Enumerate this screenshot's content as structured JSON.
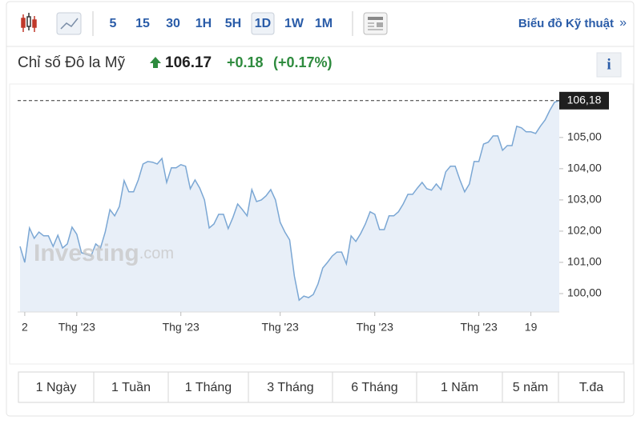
{
  "toolbar": {
    "intervals": [
      "5",
      "15",
      "30",
      "1H",
      "5H",
      "1D",
      "1W",
      "1M"
    ],
    "active": "1D",
    "technical_link": "Biểu đồ Kỹ thuật",
    "link_arrow": "»"
  },
  "quote": {
    "name": "Chỉ số Đô la Mỹ",
    "price": 106.17,
    "change": "+0.18",
    "change_pct": "(+0.17%)",
    "info": "i"
  },
  "ranges": [
    "1 Ngày",
    "1 Tuần",
    "1 Tháng",
    "3 Tháng",
    "6 Tháng",
    "1 Năm",
    "5 năm",
    "T.đa"
  ],
  "chart_data": {
    "type": "line",
    "watermark": [
      "Investing",
      ".com"
    ],
    "series": [
      {
        "name": "Chỉ số Đô la Mỹ",
        "color": "#7ba7d4",
        "fill": "#e8eff8",
        "values": [
          101.51,
          101.0,
          102.1,
          101.77,
          101.97,
          101.85,
          101.85,
          101.51,
          101.87,
          101.46,
          101.59,
          102.13,
          101.9,
          101.31,
          101.26,
          101.2,
          101.59,
          101.46,
          101.97,
          102.69,
          102.49,
          102.79,
          103.62,
          103.26,
          103.26,
          103.64,
          104.15,
          104.23,
          104.21,
          104.15,
          104.33,
          103.56,
          104.03,
          104.03,
          104.13,
          104.08,
          103.36,
          103.64,
          103.38,
          103.0,
          102.1,
          102.23,
          102.54,
          102.54,
          102.08,
          102.44,
          102.87,
          102.69,
          102.49,
          103.33,
          102.95,
          103.0,
          103.13,
          103.33,
          103.0,
          102.28,
          101.97,
          101.72,
          100.56,
          99.79,
          99.92,
          99.87,
          99.97,
          100.31,
          100.82,
          101.0,
          101.2,
          101.33,
          101.33,
          100.95,
          101.85,
          101.67,
          101.92,
          102.23,
          102.62,
          102.54,
          102.05,
          102.05,
          102.49,
          102.49,
          102.62,
          102.87,
          103.18,
          103.18,
          103.38,
          103.56,
          103.36,
          103.31,
          103.51,
          103.33,
          103.9,
          104.08,
          104.08,
          103.64,
          103.26,
          103.51,
          104.23,
          104.23,
          104.79,
          104.85,
          105.05,
          105.05,
          104.59,
          104.74,
          104.74,
          105.36,
          105.31,
          105.18,
          105.18,
          105.13,
          105.36,
          105.56,
          105.87,
          106.13,
          106.18
        ]
      }
    ],
    "xlim": [
      0,
      114
    ],
    "xticks": [
      {
        "value": 1,
        "label": "2"
      },
      {
        "value": 12,
        "label": "Thg '23"
      },
      {
        "value": 34,
        "label": "Thg '23"
      },
      {
        "value": 55,
        "label": "Thg '23"
      },
      {
        "value": 75,
        "label": "Thg '23"
      },
      {
        "value": 97,
        "label": "Thg '23"
      },
      {
        "value": 108,
        "label": "19"
      }
    ],
    "ylim": [
      99.41,
      106.38
    ],
    "yticks": [
      {
        "value": 100,
        "label": "100,00"
      },
      {
        "value": 101,
        "label": "101,00"
      },
      {
        "value": 102,
        "label": "102,00"
      },
      {
        "value": 103,
        "label": "103,00"
      },
      {
        "value": 104,
        "label": "104,00"
      },
      {
        "value": 105,
        "label": "105,00"
      }
    ],
    "last": {
      "value": 106.18,
      "label": "106,18"
    }
  }
}
